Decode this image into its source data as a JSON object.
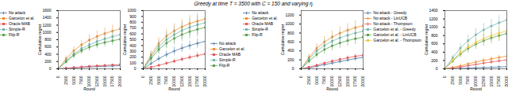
{
  "title": "Greedy at time T = 3500 with C = 150 and varying η.",
  "chart_data": [
    {
      "type": "line",
      "xlabel": "Round",
      "ylabel": "Cumulative regret",
      "xlim": [
        0,
        20000
      ],
      "xticks": [
        0,
        2500,
        5000,
        7500,
        10000,
        12500,
        15000,
        17500,
        20000
      ],
      "ylim": [
        0,
        1600
      ],
      "yticks": [
        0,
        200,
        400,
        600,
        800,
        1000,
        1200,
        1400,
        1600
      ],
      "legend": "upper left",
      "x": [
        0,
        2500,
        5000,
        7500,
        10000,
        12500,
        15000,
        17500,
        20000
      ],
      "series": [
        {
          "name": "No attack",
          "marker": "plus",
          "values": [
            0,
            12,
            25,
            38,
            50,
            60,
            70,
            78,
            87
          ],
          "errors": [
            0,
            8,
            12,
            16,
            19,
            22,
            24,
            26,
            28
          ]
        },
        {
          "name": "Garcelon et al.",
          "marker": "square",
          "values": [
            0,
            280,
            500,
            660,
            790,
            890,
            970,
            1040,
            1100
          ],
          "errors": [
            0,
            80,
            110,
            130,
            145,
            155,
            162,
            168,
            174
          ]
        },
        {
          "name": "Oracle MAB",
          "marker": "square",
          "values": [
            0,
            18,
            35,
            52,
            68,
            82,
            95,
            106,
            116
          ],
          "errors": [
            0,
            8,
            13,
            16,
            19,
            21,
            23,
            25,
            27
          ]
        },
        {
          "name": "Simple-R",
          "marker": "square",
          "values": [
            0,
            220,
            410,
            555,
            660,
            750,
            825,
            885,
            940
          ],
          "errors": [
            0,
            90,
            120,
            140,
            155,
            165,
            172,
            178,
            183
          ]
        },
        {
          "name": "Flip-R",
          "marker": "square",
          "values": [
            0,
            195,
            370,
            500,
            595,
            668,
            725,
            772,
            812
          ],
          "errors": [
            0,
            55,
            78,
            95,
            108,
            115,
            120,
            124,
            127
          ]
        }
      ]
    },
    {
      "type": "line",
      "xlabel": "Round",
      "ylabel": "Cumulative regret",
      "xlim": [
        0,
        20000
      ],
      "xticks": [
        0,
        2500,
        5000,
        7500,
        10000,
        12500,
        15000,
        17500,
        20000
      ],
      "ylim": [
        0,
        1000
      ],
      "yticks": [
        0,
        100,
        200,
        300,
        400,
        500,
        600,
        700,
        800,
        900,
        1000
      ],
      "legend": "lower right",
      "x": [
        0,
        2500,
        5000,
        7500,
        10000,
        12500,
        15000,
        17500,
        20000
      ],
      "series": [
        {
          "name": "No attack",
          "marker": "plus",
          "values": [
            0,
            90,
            175,
            245,
            305,
            355,
            400,
            438,
            472
          ],
          "errors": [
            0,
            35,
            50,
            62,
            68,
            74,
            78,
            82,
            86
          ]
        },
        {
          "name": "Garcelon et al.",
          "marker": "square",
          "values": [
            0,
            240,
            435,
            565,
            652,
            722,
            778,
            820,
            855
          ],
          "errors": [
            0,
            75,
            100,
            115,
            125,
            132,
            137,
            141,
            145
          ]
        },
        {
          "name": "Oracle MAB",
          "marker": "square",
          "values": [
            0,
            28,
            60,
            95,
            130,
            165,
            198,
            228,
            256
          ],
          "errors": [
            0,
            14,
            22,
            30,
            37,
            43,
            48,
            53,
            57
          ]
        },
        {
          "name": "Simple-R",
          "marker": "square",
          "values": [
            0,
            210,
            382,
            502,
            588,
            658,
            712,
            756,
            792
          ],
          "errors": [
            0,
            85,
            115,
            130,
            140,
            146,
            151,
            155,
            158
          ]
        },
        {
          "name": "Flip-R",
          "marker": "square",
          "values": [
            0,
            178,
            332,
            442,
            522,
            588,
            638,
            678,
            712
          ],
          "errors": [
            0,
            58,
            84,
            100,
            110,
            118,
            123,
            127,
            131
          ]
        }
      ]
    },
    {
      "type": "line",
      "xlabel": "Round",
      "ylabel": "Cumulative regret",
      "xlim": [
        0,
        20000
      ],
      "xticks": [
        0,
        2500,
        5000,
        7500,
        10000,
        12500,
        15000,
        17500,
        20000
      ],
      "ylim": [
        0,
        1300
      ],
      "yticks": [
        0,
        200,
        400,
        600,
        800,
        1000,
        1200
      ],
      "legend": "upper left",
      "x": [
        0,
        2500,
        5000,
        7500,
        10000,
        12500,
        15000,
        17500,
        20000
      ],
      "series": [
        {
          "name": "No attack",
          "marker": "plus",
          "values": [
            0,
            22,
            55,
            92,
            128,
            162,
            195,
            228,
            258
          ],
          "errors": [
            0,
            11,
            20,
            28,
            33,
            38,
            42,
            45,
            48
          ]
        },
        {
          "name": "Garcelon et al.",
          "marker": "square",
          "values": [
            0,
            255,
            455,
            600,
            710,
            795,
            862,
            918,
            962
          ],
          "errors": [
            0,
            80,
            108,
            125,
            135,
            144,
            150,
            156,
            160
          ]
        },
        {
          "name": "Oracle MAB",
          "marker": "square",
          "values": [
            0,
            38,
            80,
            126,
            170,
            210,
            246,
            278,
            306
          ],
          "errors": [
            0,
            16,
            24,
            32,
            38,
            43,
            47,
            50,
            53
          ]
        },
        {
          "name": "Simple-R",
          "marker": "square",
          "values": [
            0,
            222,
            398,
            522,
            618,
            692,
            750,
            800,
            840
          ],
          "errors": [
            0,
            88,
            118,
            133,
            143,
            150,
            155,
            159,
            162
          ]
        },
        {
          "name": "Flip-R",
          "marker": "square",
          "values": [
            0,
            172,
            320,
            430,
            512,
            578,
            630,
            672,
            708
          ],
          "errors": [
            0,
            62,
            88,
            104,
            114,
            120,
            126,
            130,
            133
          ]
        }
      ]
    },
    {
      "type": "line",
      "xlabel": "Round",
      "ylabel": "Cumulative regret",
      "xlim": [
        0,
        20000
      ],
      "xticks": [
        0,
        2500,
        5000,
        7500,
        10000,
        12500,
        15000,
        17500,
        20000
      ],
      "ylim": [
        0,
        1400
      ],
      "yticks": [
        0,
        200,
        400,
        600,
        800,
        1000,
        1200,
        1400
      ],
      "legend": "upper left",
      "x": [
        0,
        2500,
        5000,
        7500,
        10000,
        12500,
        15000,
        17500,
        20000
      ],
      "series": [
        {
          "name": "No attack - Greedy",
          "marker": "plus",
          "values": [
            0,
            4,
            10,
            17,
            24,
            31,
            38,
            44,
            50
          ],
          "errors": [
            0,
            2,
            4,
            6,
            8,
            9,
            10,
            11,
            12
          ]
        },
        {
          "name": "No attack - LinUCB",
          "marker": "plus",
          "values": [
            0,
            32,
            72,
            118,
            162,
            202,
            238,
            272,
            304
          ],
          "errors": [
            0,
            16,
            26,
            34,
            40,
            44,
            48,
            51,
            54
          ]
        },
        {
          "name": "No attack - Thompson",
          "marker": "plus",
          "values": [
            0,
            16,
            42,
            73,
            106,
            136,
            164,
            190,
            214
          ],
          "errors": [
            0,
            9,
            16,
            23,
            29,
            34,
            38,
            42,
            45
          ]
        },
        {
          "name": "Garcelon et al. - Greedy",
          "marker": "square",
          "values": [
            0,
            265,
            498,
            678,
            820,
            935,
            1028,
            1108,
            1178
          ],
          "errors": [
            0,
            85,
            115,
            135,
            150,
            160,
            168,
            174,
            179
          ]
        },
        {
          "name": "Garcelon et al. - LinUCB",
          "marker": "square",
          "values": [
            0,
            188,
            355,
            488,
            592,
            675,
            742,
            800,
            850
          ],
          "errors": [
            0,
            62,
            88,
            105,
            118,
            128,
            135,
            140,
            145
          ]
        },
        {
          "name": "Garcelon et al. - Thompson",
          "marker": "square",
          "values": [
            0,
            208,
            385,
            528,
            636,
            724,
            796,
            858,
            912
          ],
          "errors": [
            0,
            68,
            94,
            112,
            124,
            133,
            140,
            146,
            151
          ]
        }
      ]
    }
  ]
}
